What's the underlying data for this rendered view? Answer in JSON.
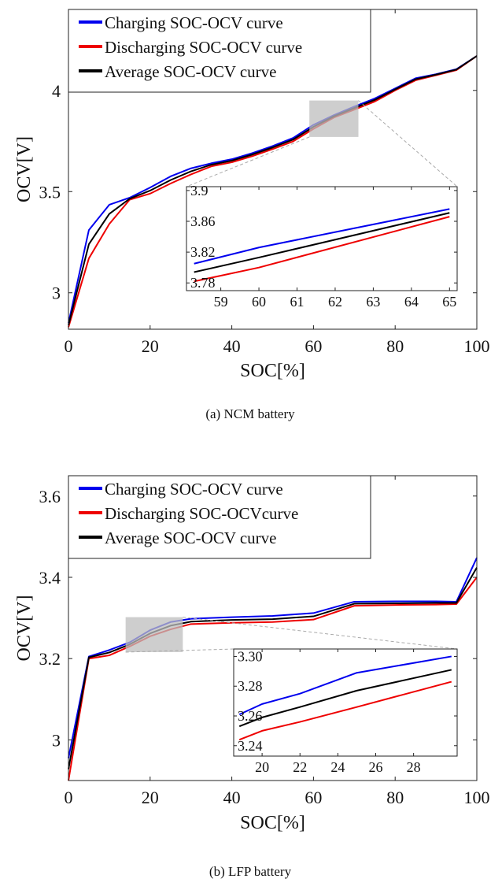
{
  "chart_data": [
    {
      "id": "ncm",
      "type": "line",
      "caption": "(a)  NCM  battery",
      "xlabel": "SOC[%]",
      "ylabel": "OCV[V]",
      "xlim": [
        0,
        100
      ],
      "ylim": [
        2.82,
        4.4
      ],
      "xticks": [
        0,
        20,
        40,
        60,
        80,
        100
      ],
      "yticks": [
        3,
        3.5,
        4
      ],
      "ytick_labels": [
        "3",
        "3.5",
        "4"
      ],
      "legend_position": "top-left",
      "series": [
        {
          "name": "Charging SOC-OCV curve",
          "color": "#0000ee",
          "x": [
            0,
            5,
            10,
            15,
            20,
            25,
            30,
            35,
            40,
            45,
            50,
            55,
            60,
            65,
            70,
            75,
            80,
            85,
            90,
            95,
            100
          ],
          "y": [
            2.85,
            3.31,
            3.435,
            3.47,
            3.52,
            3.575,
            3.615,
            3.64,
            3.66,
            3.69,
            3.725,
            3.765,
            3.83,
            3.878,
            3.92,
            3.96,
            4.01,
            4.06,
            4.08,
            4.105,
            4.17
          ]
        },
        {
          "name": "Discharging SOC-OCV curve",
          "color": "#ee0000",
          "x": [
            0,
            5,
            10,
            15,
            20,
            25,
            30,
            35,
            40,
            45,
            50,
            55,
            60,
            65,
            70,
            75,
            80,
            85,
            90,
            95,
            100
          ],
          "y": [
            2.83,
            3.17,
            3.34,
            3.46,
            3.49,
            3.54,
            3.585,
            3.625,
            3.645,
            3.675,
            3.71,
            3.748,
            3.81,
            3.866,
            3.905,
            3.945,
            4.0,
            4.05,
            4.075,
            4.1,
            4.17
          ]
        },
        {
          "name": "Average SOC-OCV curve",
          "color": "#000000",
          "x": [
            0,
            5,
            10,
            15,
            20,
            25,
            30,
            35,
            40,
            45,
            50,
            55,
            60,
            65,
            70,
            75,
            80,
            85,
            90,
            95,
            100
          ],
          "y": [
            2.84,
            3.24,
            3.39,
            3.465,
            3.505,
            3.557,
            3.6,
            3.633,
            3.653,
            3.683,
            3.718,
            3.757,
            3.82,
            3.872,
            3.913,
            3.953,
            4.005,
            4.055,
            4.078,
            4.103,
            4.17
          ]
        }
      ],
      "zoom_region": {
        "x": [
          59,
          71
        ],
        "y": [
          3.77,
          3.95
        ]
      },
      "inset": {
        "xlim": [
          58.1,
          65.2
        ],
        "ylim": [
          3.77,
          3.905
        ],
        "xticks": [
          59,
          60,
          61,
          62,
          63,
          64,
          65
        ],
        "yticks": [
          3.78,
          3.82,
          3.86,
          3.9
        ],
        "ytick_labels": [
          "3.78",
          "3.82",
          "3.86",
          "3.9"
        ],
        "series": [
          {
            "color": "#0000ee",
            "x": [
              58.3,
              60,
              65
            ],
            "y": [
              3.805,
              3.826,
              3.876
            ]
          },
          {
            "color": "#ee0000",
            "x": [
              58.3,
              60,
              65
            ],
            "y": [
              3.782,
              3.8,
              3.866
            ]
          },
          {
            "color": "#000000",
            "x": [
              58.3,
              60,
              65
            ],
            "y": [
              3.794,
              3.813,
              3.871
            ]
          }
        ]
      }
    },
    {
      "id": "lfp",
      "type": "line",
      "caption": "(b)  LFP  battery",
      "xlabel": "SOC[%]",
      "ylabel": "OCV[V]",
      "xlim": [
        0,
        100
      ],
      "ylim": [
        2.9,
        3.65
      ],
      "xticks": [
        0,
        20,
        40,
        60,
        80,
        100
      ],
      "yticks": [
        3,
        3.2,
        3.4,
        3.6
      ],
      "ytick_labels": [
        "3",
        "3.2",
        "3.4",
        "3.6"
      ],
      "legend_position": "top-left",
      "series": [
        {
          "name": "Charging SOC-OCV curve",
          "color": "#0000ee",
          "x": [
            0,
            5,
            10,
            15,
            20,
            25,
            30,
            40,
            50,
            60,
            70,
            80,
            90,
            95,
            100
          ],
          "y": [
            2.955,
            3.205,
            3.221,
            3.24,
            3.27,
            3.29,
            3.298,
            3.302,
            3.305,
            3.312,
            3.34,
            3.341,
            3.341,
            3.34,
            3.448
          ]
        },
        {
          "name": "Discharging SOC-OCVcurve",
          "color": "#ee0000",
          "x": [
            0,
            5,
            10,
            15,
            20,
            25,
            30,
            40,
            50,
            60,
            70,
            80,
            90,
            95,
            100
          ],
          "y": [
            2.9,
            3.2,
            3.208,
            3.23,
            3.255,
            3.272,
            3.285,
            3.288,
            3.29,
            3.296,
            3.33,
            3.332,
            3.333,
            3.334,
            3.4
          ]
        },
        {
          "name": "Average SOC-OCV curve",
          "color": "#000000",
          "x": [
            0,
            5,
            10,
            15,
            20,
            25,
            30,
            40,
            50,
            60,
            70,
            80,
            90,
            95,
            100
          ],
          "y": [
            2.928,
            3.203,
            3.215,
            3.235,
            3.262,
            3.281,
            3.291,
            3.295,
            3.297,
            3.304,
            3.335,
            3.336,
            3.337,
            3.337,
            3.424
          ]
        }
      ],
      "zoom_region": {
        "x": [
          14,
          28
        ],
        "y": [
          3.216,
          3.302
        ]
      },
      "inset": {
        "xlim": [
          18.5,
          30.3
        ],
        "ylim": [
          3.233,
          3.305
        ],
        "xticks": [
          20,
          22,
          24,
          26,
          28
        ],
        "yticks": [
          3.24,
          3.26,
          3.28,
          3.3
        ],
        "ytick_labels": [
          "3.24",
          "3.26",
          "3.28",
          "3.30"
        ],
        "series": [
          {
            "color": "#0000ee",
            "x": [
              18.8,
              20,
              22,
              25,
              30
            ],
            "y": [
              3.261,
              3.268,
              3.275,
              3.289,
              3.3
            ]
          },
          {
            "color": "#ee0000",
            "x": [
              18.8,
              20,
              22,
              25,
              30
            ],
            "y": [
              3.244,
              3.25,
              3.256,
              3.266,
              3.283
            ]
          },
          {
            "color": "#000000",
            "x": [
              18.8,
              20,
              22,
              25,
              30
            ],
            "y": [
              3.253,
              3.259,
              3.266,
              3.277,
              3.291
            ]
          }
        ]
      }
    }
  ]
}
